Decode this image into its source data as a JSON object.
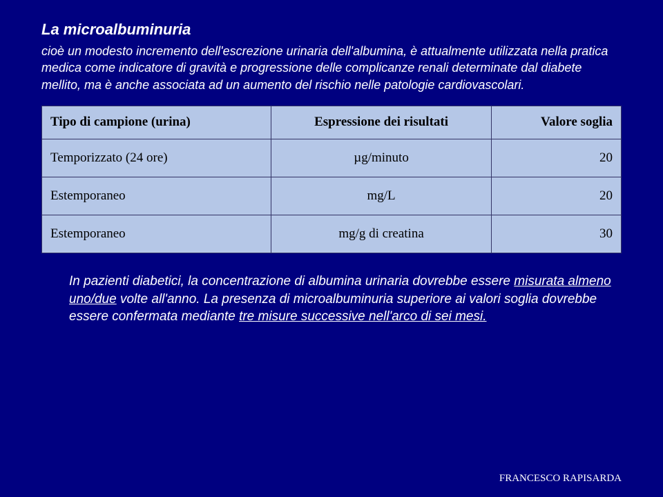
{
  "title": "La microalbuminuria",
  "paragraph": "cioè un modesto incremento dell'escrezione urinaria dell'albumina, è attualmente utilizzata nella pratica medica come indicatore di gravità e progressione delle complicanze renali determinate dal diabete mellito, ma è anche associata ad un aumento del rischio nelle patologie cardiovascolari.",
  "table": {
    "headers": [
      "Tipo di campione (urina)",
      "Espressione dei risultati",
      "Valore soglia"
    ],
    "rows": [
      [
        "Temporizzato (24 ore)",
        "µg/minuto",
        "20"
      ],
      [
        "Estemporaneo",
        "mg/L",
        "20"
      ],
      [
        "Estemporaneo",
        "mg/g di creatina",
        "30"
      ]
    ],
    "background": "#b5c7e7",
    "border_color": "#333366",
    "text_color": "#000000"
  },
  "bottom": {
    "line1_pre": "In pazienti diabetici, la concentrazione di albumina urinaria dovrebbe essere ",
    "line1_u": "misurata almeno uno/due",
    "line1_post": " volte all'anno. La presenza di microalbuminuria superiore ai valori soglia dovrebbe essere confermata mediante ",
    "line2_u": "tre misure successive nell'arco di sei mesi."
  },
  "footer": "FRANCESCO RAPISARDA"
}
